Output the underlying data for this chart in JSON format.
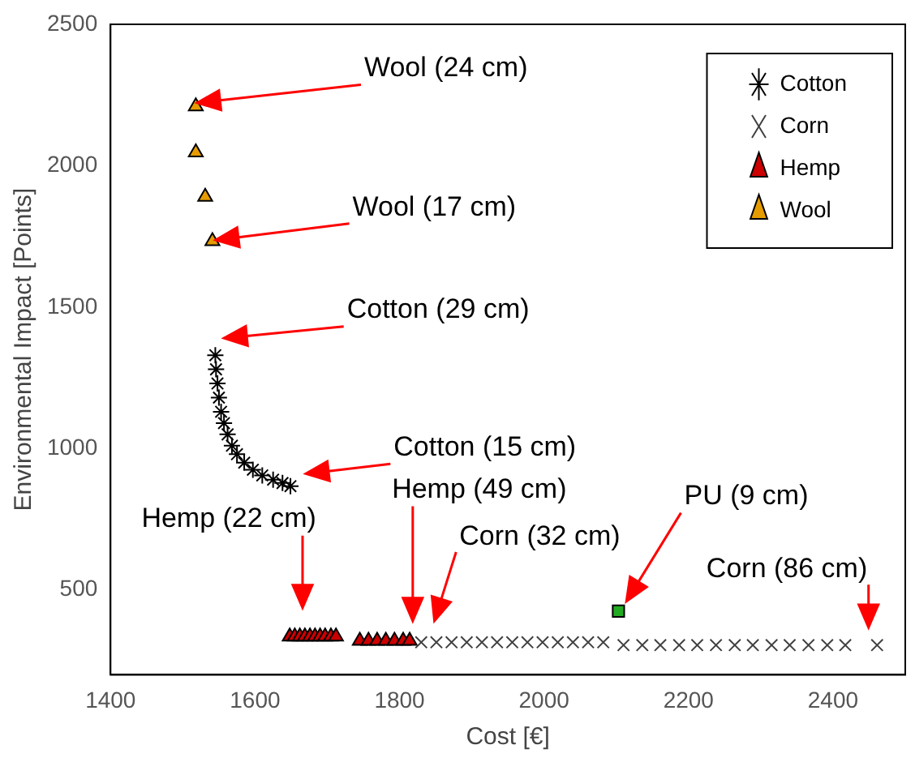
{
  "chart_data": {
    "type": "scatter",
    "xlabel": "Cost [€]",
    "ylabel": "Environmental Impact [Points]",
    "xlim": [
      1400,
      2500
    ],
    "xticks": [
      1400,
      1600,
      1800,
      2000,
      2200,
      2400
    ],
    "ylim": [
      200,
      2500
    ],
    "yticks": [
      500,
      1000,
      1500,
      2000,
      2500
    ],
    "grid": false,
    "legend": "top right",
    "series": [
      {
        "name": "Cotton",
        "color": "#000000",
        "x": [
          1545,
          1546,
          1548,
          1550,
          1553,
          1557,
          1562,
          1568,
          1575,
          1585,
          1597,
          1610,
          1625,
          1638,
          1649
        ],
        "values": [
          1330,
          1280,
          1230,
          1180,
          1130,
          1090,
          1050,
          1010,
          980,
          950,
          925,
          905,
          890,
          878,
          867
        ]
      },
      {
        "name": "Corn",
        "color": "#404040",
        "marker": "cross",
        "x": [
          1830,
          1851,
          1872,
          1893,
          1914,
          1935,
          1956,
          1977,
          1998,
          2019,
          2040,
          2061,
          2082,
          2110,
          2136,
          2161,
          2187,
          2212,
          2238,
          2264,
          2289,
          2315,
          2340,
          2366,
          2392,
          2417,
          2461
        ],
        "values": [
          315,
          315,
          315,
          315,
          315,
          315,
          315,
          315,
          315,
          315,
          315,
          315,
          315,
          305,
          305,
          305,
          305,
          305,
          305,
          305,
          305,
          305,
          305,
          305,
          305,
          305,
          305
        ]
      },
      {
        "name": "Hemp",
        "color": "#cc0000",
        "marker": "triangle",
        "x": [
          1648,
          1655,
          1662,
          1669,
          1676,
          1683,
          1690,
          1697,
          1705,
          1712,
          1745,
          1757,
          1769,
          1781,
          1793,
          1805,
          1814
        ],
        "values": [
          335,
          335,
          335,
          335,
          335,
          335,
          335,
          335,
          335,
          335,
          320,
          320,
          320,
          320,
          320,
          320,
          320
        ]
      },
      {
        "name": "Wool",
        "color": "#e69c00",
        "marker": "triangle",
        "x": [
          1518,
          1518,
          1531,
          1541
        ],
        "values": [
          2210,
          2047,
          1890,
          1733
        ]
      },
      {
        "color": "#22aa22",
        "marker": "square",
        "x": [
          2103
        ],
        "values": [
          425
        ]
      }
    ],
    "annotations": [
      "Wool (24 cm)",
      "Wool (17 cm)",
      "Cotton (29 cm)",
      "Cotton (15 cm)",
      "Hemp (22 cm)",
      "Hemp (49 cm)",
      "Corn (32 cm)",
      "PU (9 cm)",
      "Corn (86 cm)"
    ]
  }
}
